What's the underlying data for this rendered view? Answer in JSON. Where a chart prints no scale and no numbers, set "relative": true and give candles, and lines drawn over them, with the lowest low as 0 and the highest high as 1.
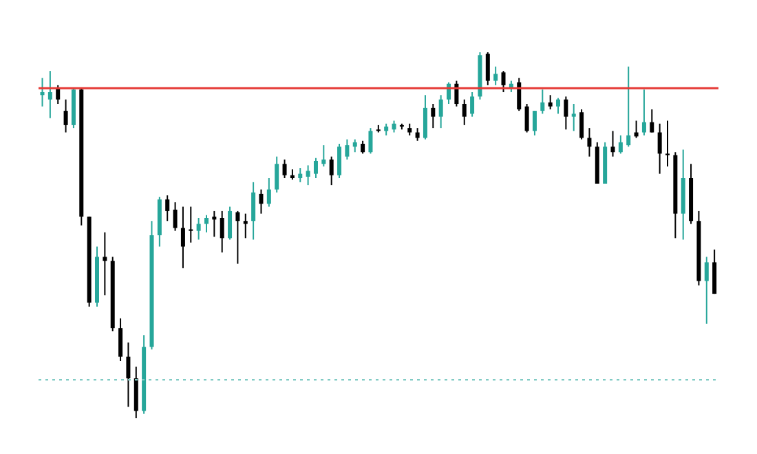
{
  "chart_data": {
    "type": "candlestick",
    "relative": true,
    "categories": [
      null,
      null,
      null,
      null,
      null,
      null,
      null,
      null,
      null,
      null,
      null,
      null,
      null,
      null,
      null,
      null,
      null,
      null,
      null,
      null,
      null,
      null,
      null,
      null,
      null,
      null,
      null,
      null,
      null,
      null,
      null,
      null,
      null,
      null,
      null,
      null,
      null,
      null,
      null,
      null,
      null,
      null,
      null,
      null,
      null,
      null,
      null,
      null,
      null,
      null,
      null,
      null,
      null,
      null,
      null,
      null,
      null,
      null,
      null,
      null,
      null,
      null,
      null,
      null,
      null,
      null,
      null,
      null,
      null,
      null,
      null,
      null,
      null,
      null,
      null,
      null,
      null,
      null,
      null,
      null,
      null,
      null,
      null,
      null,
      null,
      null,
      null
    ],
    "ohlc": [
      [
        0.883,
        0.93,
        0.852,
        0.891
      ],
      [
        0.871,
        0.949,
        0.82,
        0.891
      ],
      [
        0.902,
        0.91,
        0.859,
        0.871
      ],
      [
        0.84,
        0.871,
        0.781,
        0.801
      ],
      [
        0.801,
        0.902,
        0.793,
        0.898
      ],
      [
        0.898,
        0.902,
        0.527,
        0.551
      ],
      [
        0.551,
        0.551,
        0.305,
        0.316
      ],
      [
        0.316,
        0.469,
        0.305,
        0.441
      ],
      [
        0.441,
        0.508,
        0.336,
        0.43
      ],
      [
        0.43,
        0.441,
        0.238,
        0.246
      ],
      [
        0.246,
        0.273,
        0.156,
        0.168
      ],
      [
        0.168,
        0.207,
        0.031,
        0.109
      ],
      [
        0.109,
        0.141,
        0,
        0.02
      ],
      [
        0.02,
        0.227,
        0.012,
        0.195
      ],
      [
        0.195,
        0.539,
        0.188,
        0.5
      ],
      [
        0.5,
        0.605,
        0.469,
        0.598
      ],
      [
        0.598,
        0.609,
        0.539,
        0.566
      ],
      [
        0.57,
        0.59,
        0.512,
        0.52
      ],
      [
        0.52,
        0.578,
        0.41,
        0.469
      ],
      [
        0.516,
        0.578,
        0.48,
        0.512
      ],
      [
        0.512,
        0.547,
        0.488,
        0.531
      ],
      [
        0.531,
        0.555,
        0.508,
        0.547
      ],
      [
        0.551,
        0.566,
        0.496,
        0.543
      ],
      [
        0.547,
        0.566,
        0.453,
        0.492
      ],
      [
        0.492,
        0.578,
        0.488,
        0.566
      ],
      [
        0.563,
        0.566,
        0.422,
        0.539
      ],
      [
        0.539,
        0.559,
        0.492,
        0.531
      ],
      [
        0.539,
        0.645,
        0.488,
        0.617
      ],
      [
        0.613,
        0.625,
        0.559,
        0.586
      ],
      [
        0.586,
        0.656,
        0.578,
        0.625
      ],
      [
        0.625,
        0.715,
        0.617,
        0.695
      ],
      [
        0.695,
        0.707,
        0.656,
        0.664
      ],
      [
        0.664,
        0.68,
        0.652,
        0.656
      ],
      [
        0.656,
        0.684,
        0.645,
        0.668
      ],
      [
        0.66,
        0.691,
        0.637,
        0.676
      ],
      [
        0.668,
        0.711,
        0.656,
        0.703
      ],
      [
        0.695,
        0.746,
        0.688,
        0.707
      ],
      [
        0.707,
        0.715,
        0.637,
        0.664
      ],
      [
        0.664,
        0.75,
        0.656,
        0.742
      ],
      [
        0.715,
        0.762,
        0.707,
        0.746
      ],
      [
        0.742,
        0.762,
        0.727,
        0.754
      ],
      [
        0.75,
        0.758,
        0.723,
        0.727
      ],
      [
        0.727,
        0.793,
        0.723,
        0.785
      ],
      [
        0.789,
        0.801,
        0.781,
        0.785
      ],
      [
        0.785,
        0.805,
        0.773,
        0.797
      ],
      [
        0.789,
        0.813,
        0.781,
        0.805
      ],
      [
        0.801,
        0.805,
        0.789,
        0.797
      ],
      [
        0.793,
        0.805,
        0.773,
        0.781
      ],
      [
        0.781,
        0.793,
        0.758,
        0.766
      ],
      [
        0.766,
        0.883,
        0.762,
        0.848
      ],
      [
        0.848,
        0.859,
        0.793,
        0.824
      ],
      [
        0.824,
        0.883,
        0.793,
        0.871
      ],
      [
        0.871,
        0.918,
        0.859,
        0.914
      ],
      [
        0.914,
        0.922,
        0.852,
        0.859
      ],
      [
        0.859,
        0.871,
        0.801,
        0.824
      ],
      [
        0.832,
        0.891,
        0.824,
        0.879
      ],
      [
        0.879,
        1,
        0.871,
        0.992
      ],
      [
        0.996,
        1,
        0.91,
        0.922
      ],
      [
        0.922,
        0.961,
        0.91,
        0.941
      ],
      [
        0.945,
        0.949,
        0.891,
        0.91
      ],
      [
        0.902,
        0.922,
        0.891,
        0.914
      ],
      [
        0.918,
        0.93,
        0.84,
        0.844
      ],
      [
        0.852,
        0.859,
        0.781,
        0.785
      ],
      [
        0.785,
        0.84,
        0.773,
        0.84
      ],
      [
        0.84,
        0.898,
        0.832,
        0.863
      ],
      [
        0.863,
        0.883,
        0.844,
        0.852
      ],
      [
        0.852,
        0.875,
        0.832,
        0.871
      ],
      [
        0.871,
        0.879,
        0.789,
        0.824
      ],
      [
        0.824,
        0.859,
        0.785,
        0.832
      ],
      [
        0.836,
        0.844,
        0.762,
        0.766
      ],
      [
        0.766,
        0.793,
        0.715,
        0.742
      ],
      [
        0.742,
        0.754,
        0.641,
        0.641
      ],
      [
        0.641,
        0.754,
        0.641,
        0.742
      ],
      [
        0.742,
        0.785,
        0.715,
        0.727
      ],
      [
        0.727,
        0.773,
        0.723,
        0.754
      ],
      [
        0.746,
        0.961,
        0.742,
        0.773
      ],
      [
        0.781,
        0.813,
        0.766,
        0.77
      ],
      [
        0.781,
        0.898,
        0.773,
        0.809
      ],
      [
        0.809,
        0.844,
        0.781,
        0.781
      ],
      [
        0.781,
        0.805,
        0.668,
        0.723
      ],
      [
        0.723,
        0.813,
        0.688,
        0.719
      ],
      [
        0.719,
        0.727,
        0.492,
        0.559
      ],
      [
        0.559,
        0.734,
        0.488,
        0.656
      ],
      [
        0.656,
        0.695,
        0.531,
        0.539
      ],
      [
        0.539,
        0.566,
        0.363,
        0.375
      ],
      [
        0.375,
        0.441,
        0.258,
        0.426
      ],
      [
        0.426,
        0.461,
        0.34,
        0.34
      ]
    ],
    "ref_lines": [
      {
        "axis": "y",
        "value": 0.902,
        "label": null,
        "color": "#e53935",
        "line_style": "solid"
      },
      {
        "axis": "y",
        "value": 0.105,
        "label": null,
        "color": "#80cbc4",
        "line_style": "dotted"
      }
    ]
  }
}
